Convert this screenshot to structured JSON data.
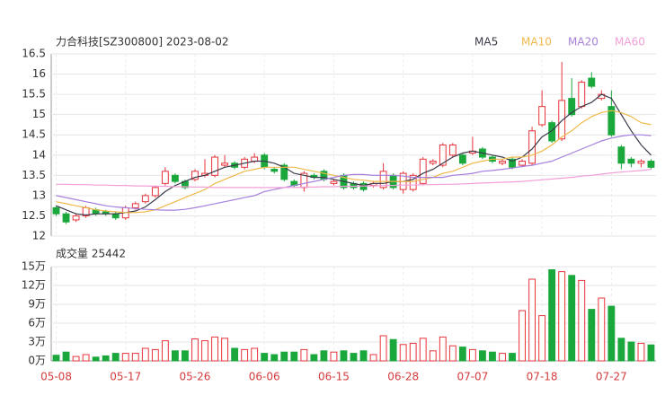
{
  "chart_data": [
    {
      "type": "candlestick",
      "title": "力合科技[SZ300800] 2023-08-02",
      "categories": [
        "05-08",
        null,
        null,
        null,
        null,
        null,
        null,
        "05-17",
        null,
        null,
        null,
        null,
        null,
        null,
        "05-26",
        null,
        null,
        null,
        null,
        null,
        null,
        "06-06",
        null,
        null,
        null,
        null,
        null,
        null,
        "06-15",
        null,
        null,
        null,
        null,
        null,
        null,
        "06-28",
        null,
        null,
        null,
        null,
        null,
        null,
        "07-07",
        null,
        null,
        null,
        null,
        null,
        null,
        "07-18",
        null,
        null,
        null,
        null,
        null,
        null,
        "07-27",
        null,
        null,
        null,
        null
      ],
      "open": [
        12.7,
        12.55,
        12.4,
        12.5,
        12.65,
        12.6,
        12.55,
        12.45,
        12.7,
        12.85,
        13.0,
        13.3,
        13.5,
        13.35,
        13.4,
        13.5,
        13.5,
        13.75,
        13.8,
        13.7,
        13.85,
        14.0,
        13.65,
        13.75,
        13.35,
        13.2,
        13.5,
        13.6,
        13.3,
        13.5,
        13.3,
        13.3,
        13.25,
        13.2,
        13.5,
        13.15,
        13.15,
        13.3,
        13.8,
        13.75,
        14.0,
        14.0,
        14.05,
        14.15,
        13.95,
        13.8,
        13.9,
        13.75,
        13.8,
        14.75,
        14.8,
        14.4,
        15.4,
        15.2,
        15.9,
        15.4,
        15.2,
        14.2,
        13.9,
        13.8,
        13.85
      ],
      "high": [
        12.75,
        12.6,
        12.55,
        12.75,
        12.7,
        12.65,
        12.6,
        12.75,
        12.85,
        13.05,
        13.25,
        13.7,
        13.55,
        13.4,
        13.65,
        13.9,
        14.0,
        14.0,
        13.85,
        13.95,
        14.05,
        14.05,
        13.7,
        13.8,
        13.4,
        13.6,
        13.55,
        13.65,
        13.4,
        13.55,
        13.35,
        13.35,
        13.35,
        13.8,
        13.55,
        13.6,
        13.55,
        13.95,
        13.9,
        14.3,
        14.3,
        14.05,
        14.45,
        14.2,
        14.0,
        13.9,
        13.95,
        13.9,
        14.7,
        15.6,
        14.85,
        16.3,
        15.9,
        15.85,
        16.05,
        15.6,
        15.6,
        14.25,
        13.95,
        13.9,
        13.9
      ],
      "low": [
        12.5,
        12.3,
        12.35,
        12.45,
        12.5,
        12.5,
        12.4,
        12.4,
        12.65,
        12.8,
        12.95,
        13.25,
        13.3,
        13.15,
        13.35,
        13.45,
        13.45,
        13.7,
        13.65,
        13.65,
        13.8,
        13.65,
        13.55,
        13.35,
        13.2,
        13.1,
        13.4,
        13.35,
        13.25,
        13.15,
        13.15,
        13.1,
        13.2,
        13.15,
        13.15,
        13.05,
        13.1,
        13.25,
        13.75,
        13.7,
        13.95,
        13.75,
        14.0,
        13.9,
        13.8,
        13.75,
        13.65,
        13.7,
        13.75,
        14.7,
        14.3,
        14.35,
        14.95,
        15.15,
        15.65,
        15.35,
        14.45,
        13.65,
        13.7,
        13.7,
        13.65
      ],
      "close": [
        12.55,
        12.35,
        12.5,
        12.7,
        12.55,
        12.55,
        12.45,
        12.7,
        12.8,
        13.0,
        13.2,
        13.6,
        13.35,
        13.2,
        13.6,
        13.55,
        13.95,
        13.8,
        13.7,
        13.9,
        13.95,
        13.7,
        13.6,
        13.4,
        13.25,
        13.55,
        13.45,
        13.4,
        13.35,
        13.2,
        13.2,
        13.15,
        13.3,
        13.6,
        13.2,
        13.55,
        13.5,
        13.9,
        13.85,
        14.25,
        14.25,
        13.8,
        14.1,
        13.95,
        13.85,
        13.85,
        13.7,
        13.85,
        14.6,
        15.2,
        14.35,
        15.35,
        15.0,
        15.8,
        15.7,
        15.5,
        14.5,
        13.8,
        13.8,
        13.85,
        13.7
      ],
      "up_color": "#e8333a",
      "down_color": "#1aa83c",
      "series": [
        {
          "name": "MA5",
          "color": "#3a3a4a",
          "values": [
            12.75,
            12.65,
            12.55,
            12.52,
            12.55,
            12.55,
            12.55,
            12.58,
            12.62,
            12.72,
            12.9,
            13.1,
            13.25,
            13.35,
            13.45,
            13.5,
            13.6,
            13.7,
            13.75,
            13.8,
            13.85,
            13.85,
            13.8,
            13.7,
            13.55,
            13.5,
            13.45,
            13.45,
            13.4,
            13.35,
            13.3,
            13.25,
            13.3,
            13.3,
            13.35,
            13.35,
            13.4,
            13.55,
            13.65,
            13.8,
            13.95,
            14.05,
            14.1,
            14.05,
            14.0,
            13.95,
            13.85,
            13.95,
            14.15,
            14.45,
            14.6,
            14.85,
            15.05,
            15.2,
            15.3,
            15.5,
            15.4,
            15.0,
            14.6,
            14.25,
            14.0
          ]
        },
        {
          "name": "MA10",
          "color": "#f0b94a",
          "values": [
            12.85,
            12.8,
            12.75,
            12.7,
            12.65,
            12.62,
            12.6,
            12.58,
            12.58,
            12.6,
            12.65,
            12.75,
            12.85,
            12.95,
            13.05,
            13.15,
            13.3,
            13.4,
            13.5,
            13.6,
            13.65,
            13.7,
            13.7,
            13.7,
            13.7,
            13.65,
            13.6,
            13.55,
            13.5,
            13.45,
            13.4,
            13.38,
            13.35,
            13.35,
            13.35,
            13.35,
            13.35,
            13.4,
            13.45,
            13.55,
            13.6,
            13.7,
            13.8,
            13.85,
            13.9,
            13.9,
            13.95,
            13.95,
            14.0,
            14.1,
            14.25,
            14.45,
            14.6,
            14.8,
            14.95,
            15.05,
            15.1,
            15.05,
            14.95,
            14.8,
            14.75
          ]
        },
        {
          "name": "MA20",
          "color": "#a67fdc",
          "values": [
            13.0,
            12.95,
            12.9,
            12.85,
            12.8,
            12.75,
            12.72,
            12.7,
            12.68,
            12.66,
            12.65,
            12.64,
            12.64,
            12.66,
            12.7,
            12.75,
            12.8,
            12.85,
            12.9,
            12.95,
            13.0,
            13.1,
            13.15,
            13.2,
            13.25,
            13.3,
            13.35,
            13.4,
            13.45,
            13.5,
            13.52,
            13.52,
            13.5,
            13.5,
            13.5,
            13.48,
            13.45,
            13.45,
            13.45,
            13.45,
            13.5,
            13.52,
            13.55,
            13.6,
            13.62,
            13.65,
            13.68,
            13.72,
            13.75,
            13.8,
            13.85,
            13.95,
            14.05,
            14.15,
            14.25,
            14.35,
            14.42,
            14.47,
            14.5,
            14.5,
            14.48
          ]
        },
        {
          "name": "MA60",
          "color": "#f19fd8",
          "values": [
            13.28,
            13.28,
            13.27,
            13.27,
            13.26,
            13.26,
            13.25,
            13.25,
            13.24,
            13.24,
            13.23,
            13.23,
            13.22,
            13.22,
            13.21,
            13.21,
            13.2,
            13.2,
            13.2,
            13.2,
            13.2,
            13.2,
            13.2,
            13.2,
            13.2,
            13.21,
            13.21,
            13.22,
            13.22,
            13.23,
            13.23,
            13.24,
            13.24,
            13.25,
            13.25,
            13.26,
            13.26,
            13.27,
            13.27,
            13.28,
            13.28,
            13.29,
            13.3,
            13.31,
            13.32,
            13.33,
            13.34,
            13.35,
            13.37,
            13.39,
            13.41,
            13.43,
            13.45,
            13.48,
            13.5,
            13.53,
            13.56,
            13.58,
            13.6,
            13.62,
            13.65
          ]
        }
      ],
      "ylim": [
        12,
        16.5
      ],
      "yticks": [
        12,
        12.5,
        13,
        13.5,
        14,
        14.5,
        15,
        15.5,
        16,
        16.5
      ],
      "grid": true
    },
    {
      "type": "bar",
      "title": "成交量 25442",
      "values": [
        0.9,
        1.4,
        0.7,
        1.0,
        0.6,
        0.8,
        1.2,
        1.2,
        1.2,
        2.0,
        1.8,
        3.2,
        1.6,
        1.6,
        3.5,
        3.2,
        3.8,
        3.6,
        2.0,
        1.8,
        2.0,
        1.2,
        1.0,
        1.4,
        1.4,
        1.8,
        1.0,
        1.6,
        1.4,
        1.6,
        1.2,
        1.6,
        1.0,
        4.0,
        3.4,
        2.6,
        2.8,
        3.6,
        1.6,
        3.8,
        2.4,
        2.2,
        1.8,
        1.6,
        1.4,
        1.2,
        1.2,
        8.0,
        13.0,
        7.2,
        14.5,
        14.2,
        13.6,
        12.8,
        8.2,
        10.0,
        8.7,
        3.6,
        3.0,
        2.8,
        2.5442
      ],
      "ylim": [
        0,
        15
      ],
      "yticks": [
        {
          "value": 0,
          "label": "0万"
        },
        {
          "value": 3,
          "label": "3万"
        },
        {
          "value": 6,
          "label": "6万"
        },
        {
          "value": 9,
          "label": "9万"
        },
        {
          "value": 12,
          "label": "12万"
        },
        {
          "value": 15,
          "label": "15万"
        }
      ],
      "grid": true
    }
  ]
}
